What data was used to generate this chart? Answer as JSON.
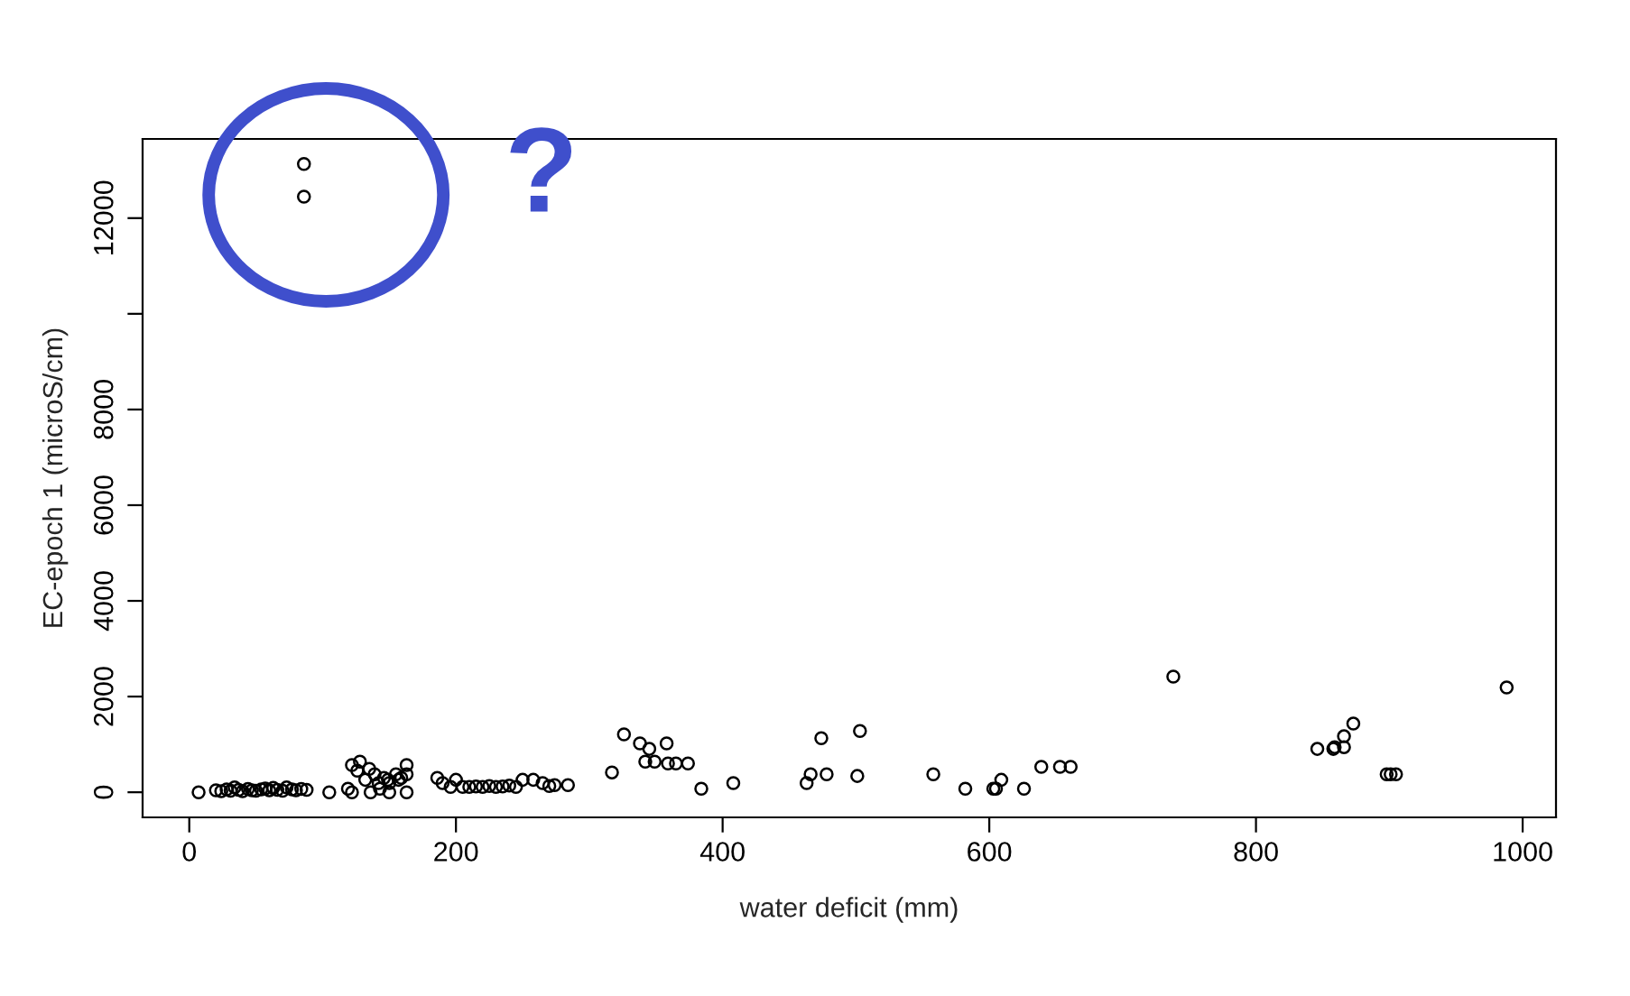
{
  "chart_data": {
    "type": "scatter",
    "xlabel": "water deficit (mm)",
    "ylabel": "EC-epoch 1 (microS/cm)",
    "xlim": [
      -35,
      1025
    ],
    "ylim": [
      -525,
      13655
    ],
    "xticks": [
      0,
      200,
      400,
      600,
      800,
      1000
    ],
    "yticks": [
      0,
      2000,
      4000,
      6000,
      8000,
      {
        "value": 10000,
        "label": null
      },
      12000
    ],
    "marker": "circle",
    "grid": false,
    "legend": false,
    "annotations": [
      "?"
    ],
    "series": [
      {
        "color": "#000000",
        "x": [
          7,
          20,
          24,
          28,
          31,
          34,
          37,
          40,
          44,
          47,
          50,
          54,
          57,
          60,
          63,
          66,
          70,
          73,
          77,
          80,
          84,
          88,
          86,
          86,
          105,
          122,
          119,
          122,
          128,
          126,
          135,
          139,
          132,
          142,
          136,
          150,
          146,
          155,
          159,
          163,
          163,
          163,
          150,
          157,
          143,
          149,
          186,
          190,
          200,
          196,
          205,
          210,
          215,
          220,
          225,
          230,
          235,
          240,
          245,
          250,
          258,
          265,
          270,
          274,
          284,
          326,
          338,
          345,
          358,
          342,
          349,
          359,
          365,
          374,
          317,
          384,
          408,
          463,
          466,
          474,
          478,
          501,
          503,
          558,
          582,
          603,
          609,
          605,
          626,
          639,
          653,
          661,
          738,
          988,
          846,
          858,
          859,
          866,
          866,
          873,
          898,
          901,
          905
        ],
        "values": [
          0,
          40,
          20,
          60,
          30,
          100,
          50,
          20,
          70,
          40,
          30,
          60,
          80,
          40,
          90,
          50,
          30,
          100,
          60,
          40,
          70,
          50,
          12450,
          13130,
          0,
          0,
          75,
          570,
          640,
          450,
          490,
          377,
          260,
          190,
          0,
          0,
          300,
          377,
          300,
          570,
          377,
          0,
          190,
          260,
          75,
          260,
          300,
          190,
          260,
          110,
          110,
          110,
          120,
          110,
          130,
          110,
          120,
          140,
          110,
          260,
          260,
          190,
          130,
          150,
          150,
          1208,
          1020,
          906,
          1020,
          640,
          640,
          600,
          600,
          600,
          415,
          75,
          190,
          190,
          377,
          1130,
          377,
          340,
          1280,
          377,
          75,
          75,
          260,
          75,
          75,
          530,
          530,
          530,
          2415,
          2190,
          906,
          906,
          943,
          943,
          1170,
          1434,
          377,
          377,
          377
        ]
      }
    ]
  }
}
